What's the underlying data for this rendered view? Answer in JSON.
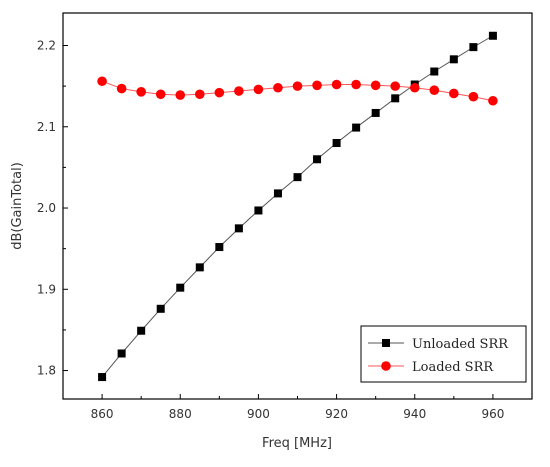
{
  "chart_data": {
    "type": "line",
    "title": "",
    "xlabel": "Freq [MHz]",
    "ylabel": "dB(GainTotal)",
    "xlim": [
      850,
      970
    ],
    "ylim": [
      1.765,
      2.24
    ],
    "xticks": [
      860,
      880,
      900,
      920,
      940,
      960
    ],
    "yticks": [
      1.8,
      1.9,
      2.0,
      2.1,
      2.2
    ],
    "grid": false,
    "legend_position": "bottom-right",
    "x": [
      860,
      865,
      870,
      875,
      880,
      885,
      890,
      895,
      900,
      905,
      910,
      915,
      920,
      925,
      930,
      935,
      940,
      945,
      950,
      955,
      960
    ],
    "series": [
      {
        "name": "Unloaded SRR",
        "color": "#000000",
        "line_color": "#555555",
        "marker": "square",
        "values": [
          1.792,
          1.821,
          1.849,
          1.876,
          1.902,
          1.927,
          1.952,
          1.975,
          1.997,
          2.018,
          2.038,
          2.06,
          2.08,
          2.099,
          2.117,
          2.135,
          2.152,
          2.168,
          2.183,
          2.198,
          2.212
        ]
      },
      {
        "name": "Loaded SRR",
        "color": "#ff0000",
        "line_color": "#ff5555",
        "marker": "circle",
        "values": [
          2.156,
          2.147,
          2.143,
          2.14,
          2.139,
          2.14,
          2.142,
          2.144,
          2.146,
          2.148,
          2.15,
          2.151,
          2.152,
          2.152,
          2.151,
          2.15,
          2.148,
          2.145,
          2.141,
          2.137,
          2.132
        ]
      }
    ]
  }
}
